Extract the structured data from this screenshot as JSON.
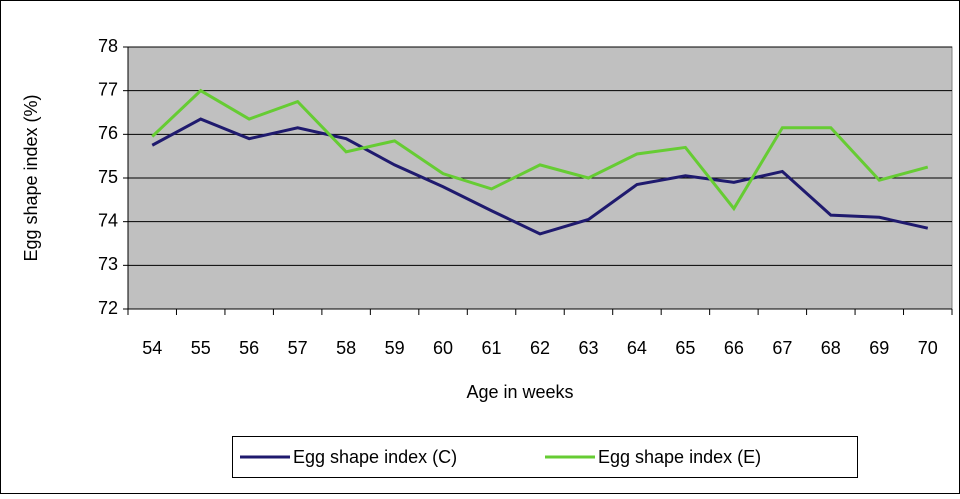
{
  "chart_data": {
    "type": "line",
    "x_label": "Age in weeks",
    "y_label": "Egg shape index (%)",
    "categories": [
      "54",
      "55",
      "56",
      "57",
      "58",
      "59",
      "60",
      "61",
      "62",
      "63",
      "64",
      "65",
      "66",
      "67",
      "68",
      "69",
      "70"
    ],
    "series": [
      {
        "name": "Egg shape index (C)",
        "color": "#1f1a6e",
        "values": [
          75.75,
          76.35,
          75.9,
          76.15,
          75.9,
          75.3,
          74.8,
          74.25,
          73.72,
          74.05,
          74.85,
          75.05,
          74.9,
          75.15,
          74.15,
          74.1,
          73.85
        ]
      },
      {
        "name": "Egg shape index (E)",
        "color": "#66cc33",
        "values": [
          75.95,
          77.0,
          76.35,
          76.75,
          75.6,
          75.85,
          75.1,
          74.75,
          75.3,
          75.0,
          75.55,
          75.7,
          74.3,
          76.15,
          76.15,
          74.95,
          75.25
        ]
      }
    ],
    "ylim": [
      72,
      78
    ],
    "yticks": [
      72,
      73,
      74,
      75,
      76,
      77,
      78
    ],
    "grid": true,
    "legend": "bottom",
    "plot_background": "#c0c0c0"
  }
}
